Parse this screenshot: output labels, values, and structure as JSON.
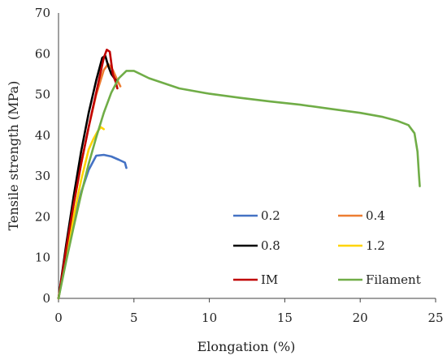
{
  "chart_data": {
    "type": "line",
    "title": "",
    "xlabel": "Elongation (%)",
    "ylabel": "Tensile strength (MPa)",
    "xlim": [
      0,
      25
    ],
    "ylim": [
      0,
      70
    ],
    "xticks": [
      0,
      5,
      10,
      15,
      20,
      25
    ],
    "yticks": [
      0,
      10,
      20,
      30,
      40,
      50,
      60,
      70
    ],
    "grid": false,
    "legend_position": "bottom-right",
    "series": [
      {
        "name": "0.2",
        "color": "#4472C4",
        "points": [
          [
            0,
            0
          ],
          [
            0.5,
            10
          ],
          [
            1,
            18.5
          ],
          [
            1.5,
            26
          ],
          [
            2,
            31.5
          ],
          [
            2.5,
            35
          ],
          [
            3,
            35.2
          ],
          [
            3.5,
            34.8
          ],
          [
            4,
            34
          ],
          [
            4.4,
            33.3
          ],
          [
            4.5,
            32
          ]
        ]
      },
      {
        "name": "0.4",
        "color": "#ED7D31",
        "points": [
          [
            0,
            0
          ],
          [
            0.5,
            12
          ],
          [
            1,
            23
          ],
          [
            1.5,
            33
          ],
          [
            2,
            42
          ],
          [
            2.5,
            50
          ],
          [
            3,
            56
          ],
          [
            3.3,
            57.5
          ],
          [
            3.6,
            56
          ],
          [
            3.9,
            53.5
          ],
          [
            4.1,
            52
          ]
        ]
      },
      {
        "name": "0.8",
        "color": "#000000",
        "points": [
          [
            0,
            0
          ],
          [
            0.5,
            13
          ],
          [
            1,
            25
          ],
          [
            1.5,
            36
          ],
          [
            2,
            45.5
          ],
          [
            2.5,
            53.5
          ],
          [
            2.9,
            59
          ],
          [
            3.1,
            59.5
          ],
          [
            3.3,
            57
          ],
          [
            3.5,
            55
          ],
          [
            3.8,
            53.5
          ]
        ]
      },
      {
        "name": "1.2",
        "color": "#FFD400",
        "points": [
          [
            0,
            0
          ],
          [
            0.5,
            10.5
          ],
          [
            1,
            20
          ],
          [
            1.5,
            29
          ],
          [
            2,
            36.5
          ],
          [
            2.3,
            39
          ],
          [
            2.6,
            41
          ],
          [
            2.8,
            42
          ],
          [
            3,
            41.5
          ]
        ]
      },
      {
        "name": "IM",
        "color": "#C00000",
        "points": [
          [
            0,
            0
          ],
          [
            0.5,
            12
          ],
          [
            1,
            23
          ],
          [
            1.5,
            33
          ],
          [
            2,
            42
          ],
          [
            2.5,
            50.5
          ],
          [
            3,
            59
          ],
          [
            3.2,
            61
          ],
          [
            3.4,
            60.5
          ],
          [
            3.6,
            55
          ],
          [
            3.8,
            53
          ],
          [
            3.9,
            51.5
          ]
        ]
      },
      {
        "name": "Filament",
        "color": "#70AD47",
        "points": [
          [
            0,
            0
          ],
          [
            0.5,
            9
          ],
          [
            1,
            17.5
          ],
          [
            1.5,
            25.5
          ],
          [
            2,
            33
          ],
          [
            2.5,
            39.5
          ],
          [
            3,
            45.5
          ],
          [
            3.5,
            50.5
          ],
          [
            4,
            54
          ],
          [
            4.5,
            55.8
          ],
          [
            5,
            55.8
          ],
          [
            6,
            54
          ],
          [
            8,
            51.5
          ],
          [
            10,
            50.2
          ],
          [
            12,
            49.2
          ],
          [
            14,
            48.3
          ],
          [
            16,
            47.5
          ],
          [
            18,
            46.5
          ],
          [
            20,
            45.5
          ],
          [
            21.5,
            44.5
          ],
          [
            22.5,
            43.5
          ],
          [
            23.2,
            42.5
          ],
          [
            23.6,
            40.5
          ],
          [
            23.8,
            36
          ],
          [
            23.9,
            30
          ],
          [
            23.95,
            27.5
          ]
        ]
      }
    ]
  }
}
